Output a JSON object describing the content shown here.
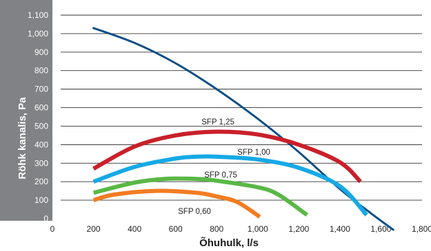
{
  "chart_data": {
    "type": "line",
    "xlabel": "Õhuhulk, l/s",
    "ylabel": "Röhk kanalis, Pa",
    "xlim": [
      0,
      1800
    ],
    "ylim": [
      0,
      1100
    ],
    "x_ticks": [
      "0",
      "200",
      "400",
      "600",
      "800",
      "1,000",
      "1,200",
      "1,400",
      "1,600",
      "1,800"
    ],
    "y_ticks": [
      "0",
      "100",
      "200",
      "300",
      "400",
      "500",
      "600",
      "700",
      "800",
      "900",
      "1,000",
      "1,100"
    ],
    "grid": "horizontal",
    "series": [
      {
        "color": "#0e4f86",
        "points": [
          [
            200,
            1030
          ],
          [
            400,
            950
          ],
          [
            600,
            840
          ],
          [
            800,
            700
          ],
          [
            1000,
            540
          ],
          [
            1200,
            360
          ],
          [
            1400,
            160
          ],
          [
            1550,
            30
          ],
          [
            1660,
            -60
          ]
        ]
      },
      {
        "name": "SFP 1,25",
        "color": "#c9202a",
        "points": [
          [
            200,
            270
          ],
          [
            400,
            390
          ],
          [
            600,
            450
          ],
          [
            800,
            470
          ],
          [
            1000,
            455
          ],
          [
            1200,
            400
          ],
          [
            1400,
            305
          ],
          [
            1500,
            200
          ]
        ]
      },
      {
        "name": "SFP 1,00",
        "color": "#16a9e6",
        "points": [
          [
            200,
            200
          ],
          [
            400,
            280
          ],
          [
            600,
            325
          ],
          [
            700,
            335
          ],
          [
            800,
            335
          ],
          [
            1000,
            320
          ],
          [
            1200,
            275
          ],
          [
            1400,
            175
          ],
          [
            1530,
            20
          ]
        ]
      },
      {
        "name": "SFP 0,75",
        "color": "#5ab846",
        "points": [
          [
            200,
            140
          ],
          [
            400,
            195
          ],
          [
            550,
            215
          ],
          [
            700,
            215
          ],
          [
            800,
            205
          ],
          [
            1000,
            170
          ],
          [
            1100,
            130
          ],
          [
            1240,
            20
          ]
        ]
      },
      {
        "name": "SFP 0,60",
        "color": "#f37c22",
        "points": [
          [
            200,
            100
          ],
          [
            300,
            130
          ],
          [
            500,
            150
          ],
          [
            700,
            140
          ],
          [
            800,
            120
          ],
          [
            900,
            90
          ],
          [
            1010,
            10
          ]
        ]
      }
    ]
  }
}
